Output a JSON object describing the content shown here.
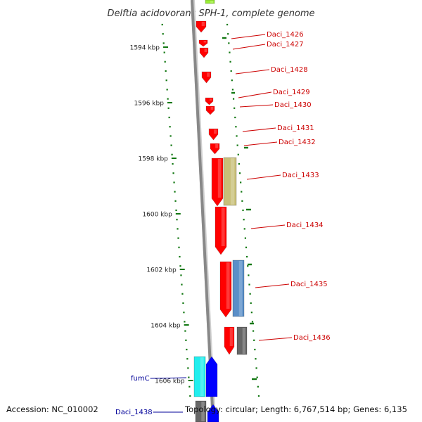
{
  "title": "Delftia acidovorans SPH-1, complete genome",
  "footer": {
    "accession": "Accession: NC_010002",
    "summary": "Topology: circular; Length: 6,767,514 bp; Genes: 6,135"
  },
  "colors": {
    "forward_gene": "#ff0000",
    "reverse_gene": "#0000ff",
    "forward_label": "#cc0000",
    "reverse_label": "#000099",
    "backbone": "#888888",
    "gc_dots": "#117711",
    "feature_khaki": "#c8bf78",
    "feature_steelblue": "#5a8fc8",
    "feature_gray": "#666666",
    "feature_cyan": "#22eeee",
    "feature_lime": "#99ee33"
  },
  "scale_ticks": [
    {
      "label": "1594 kbp",
      "kbp": 1594
    },
    {
      "label": "1596 kbp",
      "kbp": 1596
    },
    {
      "label": "1598 kbp",
      "kbp": 1598
    },
    {
      "label": "1600 kbp",
      "kbp": 1600
    },
    {
      "label": "1602 kbp",
      "kbp": 1602
    },
    {
      "label": "1604 kbp",
      "kbp": 1604
    },
    {
      "label": "1606 kbp",
      "kbp": 1606
    }
  ],
  "genes": [
    {
      "name": "Daci_1426",
      "strand": "forward"
    },
    {
      "name": "Daci_1427",
      "strand": "forward"
    },
    {
      "name": "Daci_1428",
      "strand": "forward"
    },
    {
      "name": "Daci_1429",
      "strand": "forward"
    },
    {
      "name": "Daci_1430",
      "strand": "forward"
    },
    {
      "name": "Daci_1431",
      "strand": "forward"
    },
    {
      "name": "Daci_1432",
      "strand": "forward"
    },
    {
      "name": "Daci_1433",
      "strand": "forward"
    },
    {
      "name": "Daci_1434",
      "strand": "forward"
    },
    {
      "name": "Daci_1435",
      "strand": "forward"
    },
    {
      "name": "Daci_1436",
      "strand": "forward"
    },
    {
      "name": "fumC",
      "strand": "reverse"
    },
    {
      "name": "Daci_1438",
      "strand": "reverse"
    }
  ]
}
